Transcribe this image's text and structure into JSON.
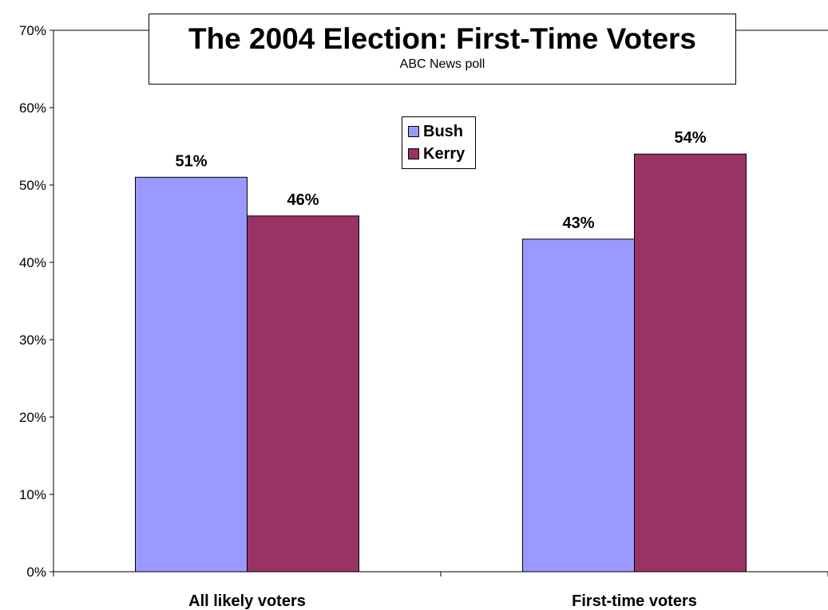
{
  "chart_data": {
    "type": "bar",
    "title": "The 2004 Election: First-Time Voters",
    "subtitle": "ABC News poll",
    "categories": [
      "All likely voters",
      "First-time voters"
    ],
    "series": [
      {
        "name": "Bush",
        "values": [
          51,
          43
        ],
        "color": "#9999ff",
        "labels": [
          "51%",
          "43%"
        ]
      },
      {
        "name": "Kerry",
        "values": [
          46,
          54
        ],
        "color": "#993366",
        "labels": [
          "46%",
          "54%"
        ]
      }
    ],
    "ylim": [
      0,
      70
    ],
    "yticks": [
      0,
      10,
      20,
      30,
      40,
      50,
      60,
      70
    ],
    "ytick_labels": [
      "0%",
      "10%",
      "20%",
      "30%",
      "40%",
      "50%",
      "60%",
      "70%"
    ],
    "legend_position": "top-center",
    "grid": false
  }
}
